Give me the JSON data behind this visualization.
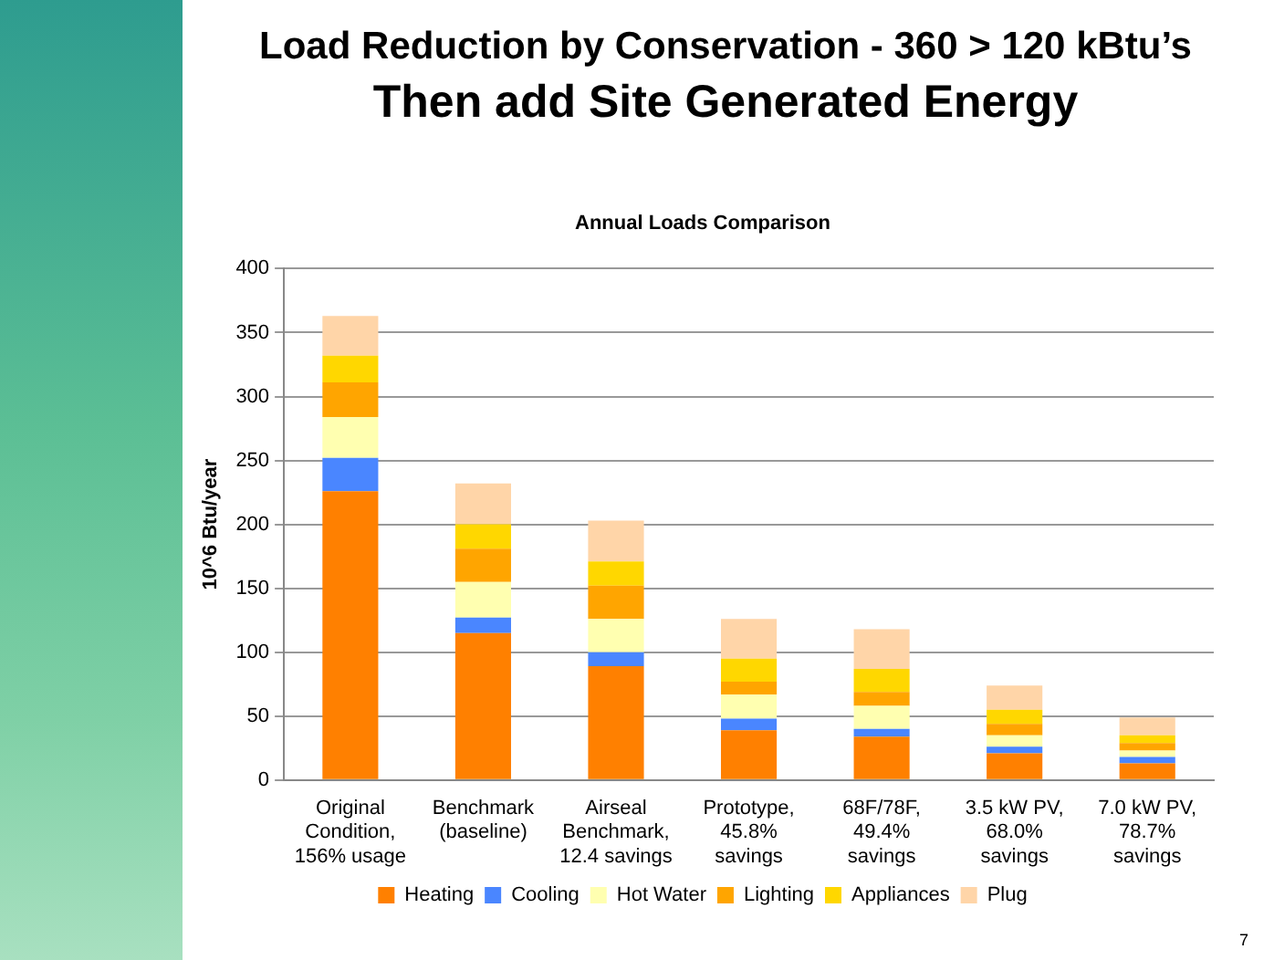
{
  "chart_data": {
    "type": "bar",
    "title": "Load Reduction by Conservation - 360 > 120 kBtu’s",
    "subtitle": "Then add Site Generated Energy",
    "annotations": [
      "Annual Loads Comparison",
      "7"
    ],
    "ylabel": "10^6 Btu/year",
    "categories": [
      "Original Condition, 156% usage",
      "Benchmark (baseline)",
      "Airseal Benchmark, 12.4 savings",
      "Prototype, 45.8% savings",
      "68F/78F, 49.4% savings",
      "3.5 kW PV, 68.0% savings",
      "7.0 kW PV, 78.7% savings"
    ],
    "stacked": true,
    "series": [
      {
        "name": "Heating",
        "color": "#ff8000",
        "values": [
          226,
          115,
          89,
          39,
          34,
          21,
          13
        ]
      },
      {
        "name": "Cooling",
        "color": "#4a86ff",
        "values": [
          26,
          12,
          11,
          9,
          6,
          5,
          5
        ]
      },
      {
        "name": "Hot Water",
        "color": "#ffffb0",
        "values": [
          32,
          28,
          26,
          19,
          18,
          9,
          5
        ]
      },
      {
        "name": "Lighting",
        "color": "#ffa500",
        "values": [
          27,
          26,
          26,
          10,
          11,
          9,
          6
        ]
      },
      {
        "name": "Appliances",
        "color": "#ffd700",
        "values": [
          21,
          19,
          19,
          18,
          18,
          11,
          6
        ]
      },
      {
        "name": "Plug",
        "color": "#ffd5a8",
        "values": [
          31,
          32,
          32,
          31,
          31,
          19,
          14
        ]
      }
    ],
    "ylim": [
      0,
      400
    ],
    "yticks": [
      0,
      50,
      100,
      150,
      200,
      250,
      300,
      350,
      400
    ],
    "grid": "y",
    "legend": "bottom"
  }
}
